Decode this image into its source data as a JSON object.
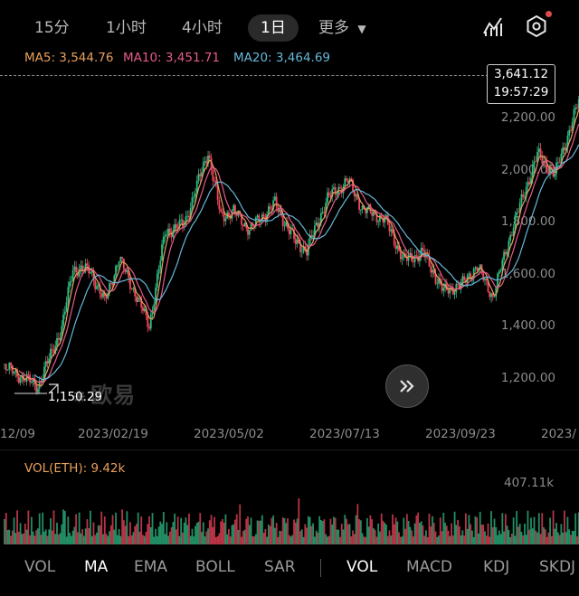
{
  "header": {
    "tabs": [
      {
        "label": "15分",
        "active": false
      },
      {
        "label": "1小时",
        "active": false
      },
      {
        "label": "4小时",
        "active": false
      },
      {
        "label": "1日",
        "active": true
      }
    ],
    "more_label": "更多",
    "chart_type_icon": "indicator-chart-icon",
    "settings_icon": "settings-gear-icon",
    "notification_color": "#e04a4a"
  },
  "ma_line": {
    "ma5": "MA5: 3,544.76",
    "ma10": "MA10: 3,451.71",
    "ma20": "MA20: 3,464.69",
    "ma5_color": "#e8a05c",
    "ma10_color": "#e45c8a",
    "ma20_color": "#66b8d8"
  },
  "price_box": {
    "price": "3,641.12",
    "time": "19:57:29"
  },
  "low_label": "1,150.29",
  "watermark": "欧易",
  "scroll_button_icon": "double-chevron-right-icon",
  "volume": {
    "label": "VOL(ETH): 9.42k",
    "max_label": "407.11k"
  },
  "indicators": {
    "main": [
      {
        "label": "VOL",
        "selected": false
      },
      {
        "label": "MA",
        "selected": true
      },
      {
        "label": "EMA",
        "selected": false
      },
      {
        "label": "BOLL",
        "selected": false
      },
      {
        "label": "SAR",
        "selected": false
      }
    ],
    "sub": [
      {
        "label": "VOL",
        "selected": true
      },
      {
        "label": "MACD",
        "selected": false
      },
      {
        "label": "KDJ",
        "selected": false
      },
      {
        "label": "SKDJ",
        "selected": false
      }
    ]
  },
  "chart_data": {
    "type": "candlestick",
    "y_ticks": [
      "2,200.00",
      "2,000.00",
      "1,800.00",
      "1,600.00",
      "1,400.00",
      "1,200.00"
    ],
    "y_tick_values": [
      2200,
      2000,
      1800,
      1600,
      1400,
      1200
    ],
    "x_ticks": [
      "12/09",
      "2023/02/19",
      "2023/05/02",
      "2023/07/13",
      "2023/09/23",
      "2023/"
    ],
    "ylim": [
      1080,
      2260
    ],
    "up_color": "#2dbd85",
    "down_color": "#f6465d",
    "grid": false,
    "close_series": [
      {
        "date": "2022/12/09",
        "close": 1270
      },
      {
        "date": "2022/12/30",
        "close": 1195
      },
      {
        "date": "2023/01/14",
        "close": 1420
      },
      {
        "date": "2023/01/21",
        "close": 1650
      },
      {
        "date": "2023/02/01",
        "close": 1640
      },
      {
        "date": "2023/02/10",
        "close": 1520
      },
      {
        "date": "2023/02/19",
        "close": 1690
      },
      {
        "date": "2023/02/25",
        "close": 1610
      },
      {
        "date": "2023/03/10",
        "close": 1430
      },
      {
        "date": "2023/03/20",
        "close": 1790
      },
      {
        "date": "2023/04/01",
        "close": 1820
      },
      {
        "date": "2023/04/16",
        "close": 2100
      },
      {
        "date": "2023/04/24",
        "close": 1850
      },
      {
        "date": "2023/05/02",
        "close": 1870
      },
      {
        "date": "2023/05/12",
        "close": 1800
      },
      {
        "date": "2023/05/28",
        "close": 1900
      },
      {
        "date": "2023/06/10",
        "close": 1750
      },
      {
        "date": "2023/06/17",
        "close": 1720
      },
      {
        "date": "2023/06/30",
        "close": 1920
      },
      {
        "date": "2023/07/13",
        "close": 1990
      },
      {
        "date": "2023/07/22",
        "close": 1880
      },
      {
        "date": "2023/08/05",
        "close": 1840
      },
      {
        "date": "2023/08/17",
        "close": 1680
      },
      {
        "date": "2023/08/29",
        "close": 1710
      },
      {
        "date": "2023/09/11",
        "close": 1560
      },
      {
        "date": "2023/09/23",
        "close": 1590
      },
      {
        "date": "2023/10/02",
        "close": 1660
      },
      {
        "date": "2023/10/12",
        "close": 1540
      },
      {
        "date": "2023/10/24",
        "close": 1800
      },
      {
        "date": "2023/11/09",
        "close": 2090
      },
      {
        "date": "2023/11/20",
        "close": 2010
      },
      {
        "date": "2023/12/08",
        "close": 2350
      }
    ],
    "volume_max": 407110
  }
}
